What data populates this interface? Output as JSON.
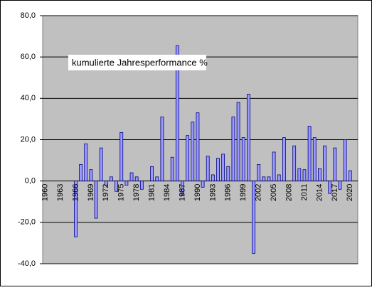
{
  "chart_data": {
    "type": "bar",
    "annotation": "kumulierte Jahresperformance %",
    "categories": [
      "1960",
      null,
      null,
      "1963",
      null,
      null,
      "1966",
      null,
      null,
      "1969",
      null,
      null,
      "1972",
      null,
      null,
      "1975",
      null,
      null,
      "1978",
      null,
      null,
      "1981",
      null,
      null,
      "1984",
      null,
      null,
      "1987",
      null,
      null,
      "1990",
      null,
      null,
      "1993",
      null,
      null,
      "1996",
      null,
      null,
      "1999",
      null,
      null,
      "2002",
      null,
      null,
      "2005",
      null,
      null,
      "2008",
      null,
      null,
      "2011",
      null,
      null,
      "2014",
      null,
      null,
      "2017",
      null,
      null,
      "2020",
      null
    ],
    "values": [
      0,
      0,
      0,
      0,
      0,
      0,
      -27,
      8,
      18,
      5.5,
      -18,
      16,
      -2,
      2,
      -5,
      23.5,
      -2,
      4,
      2,
      -4,
      0,
      7,
      2,
      31,
      0,
      11.5,
      65.5,
      -7,
      22,
      28.5,
      33,
      -3,
      12,
      3,
      11,
      13,
      7,
      31,
      38,
      21,
      42,
      -35,
      8,
      2,
      2,
      14,
      3,
      21,
      0,
      17,
      6,
      5.5,
      26.5,
      21,
      6,
      17,
      -6,
      16,
      -4,
      20,
      5,
      0
    ],
    "color": "#9999ff",
    "ylim": [
      -40,
      80
    ],
    "yticks": [
      {
        "value": -40,
        "label": "-40,0"
      },
      {
        "value": -20,
        "label": "-20,0"
      },
      {
        "value": 0,
        "label": "0,0"
      },
      {
        "value": 20,
        "label": "20,0"
      },
      {
        "value": 40,
        "label": "40,0"
      },
      {
        "value": 60,
        "label": "60,0"
      },
      {
        "value": 80,
        "label": "80,0"
      }
    ],
    "grid": true
  }
}
